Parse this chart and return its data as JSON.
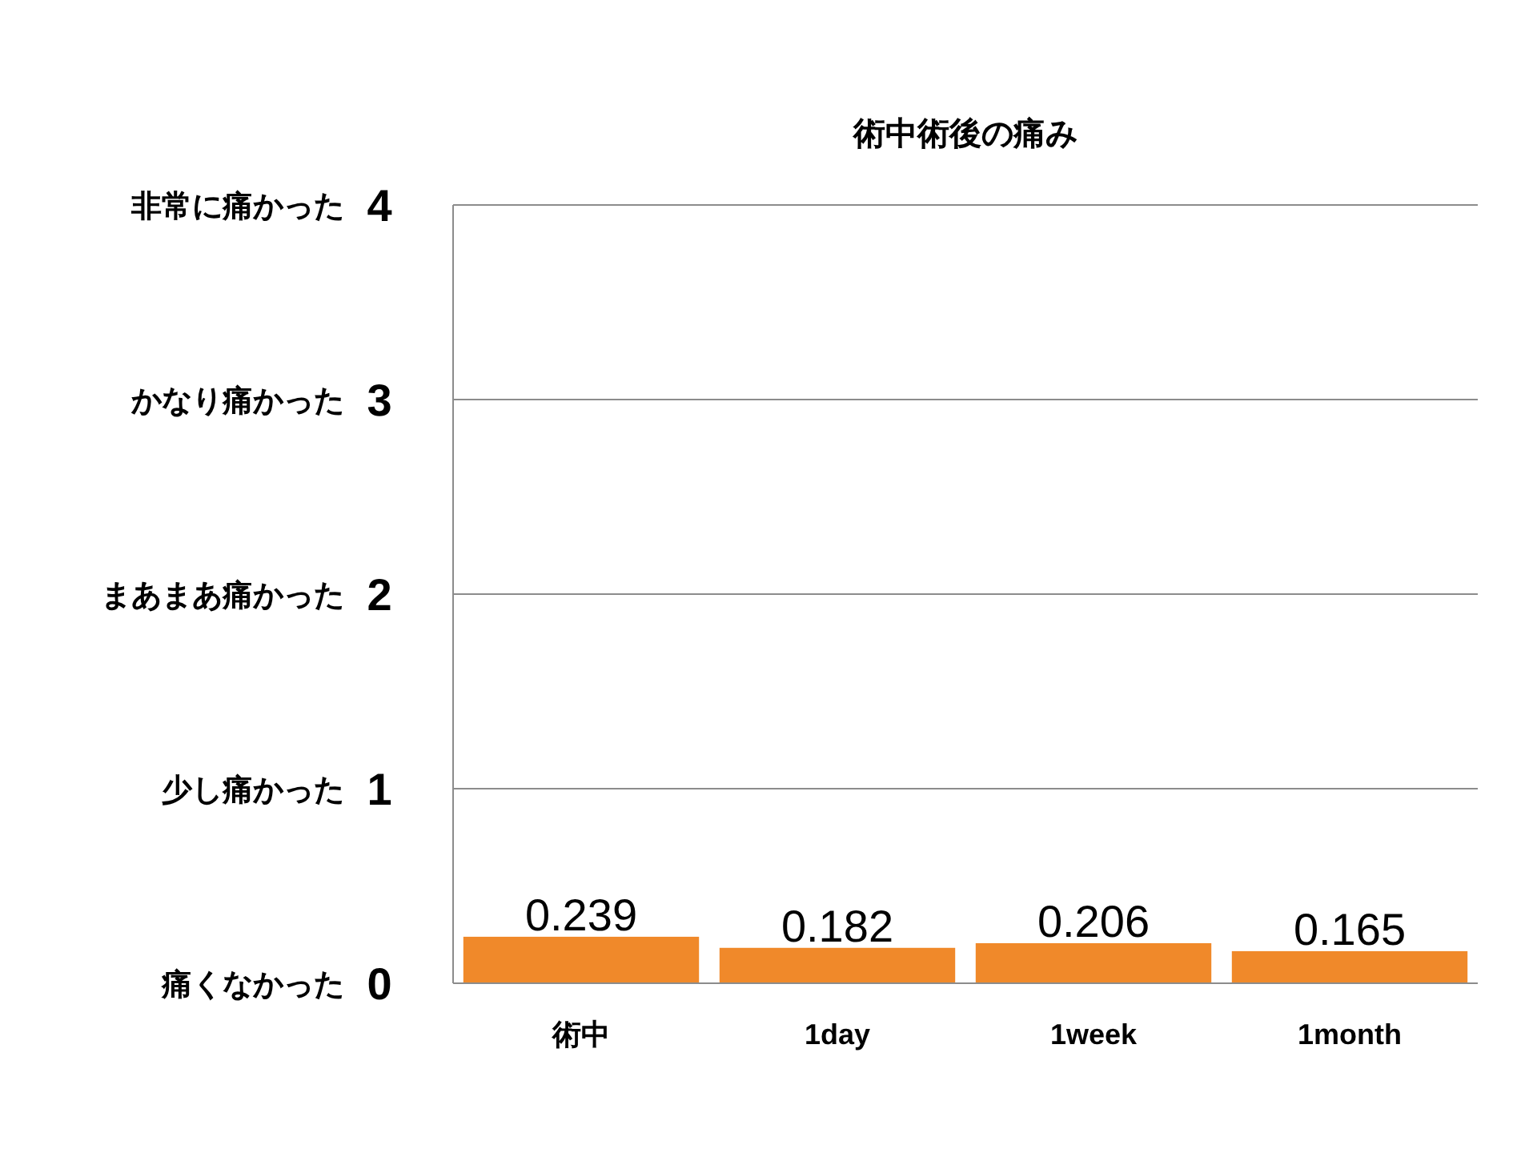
{
  "chart_data": {
    "type": "bar",
    "title": "術中術後の痛み",
    "categories": [
      "術中",
      "1day",
      "1week",
      "1month"
    ],
    "values": [
      0.239,
      0.182,
      0.206,
      0.165
    ],
    "color": "#f0892a",
    "ylim": [
      0,
      4
    ],
    "yticks": [
      0,
      1,
      2,
      3,
      4
    ],
    "grid": "y",
    "data_labels": true,
    "annotations": [
      "痛くなかった",
      "少し痛かった",
      "まあまあ痛かった",
      "かなり痛かった",
      "非常に痛かった"
    ]
  }
}
